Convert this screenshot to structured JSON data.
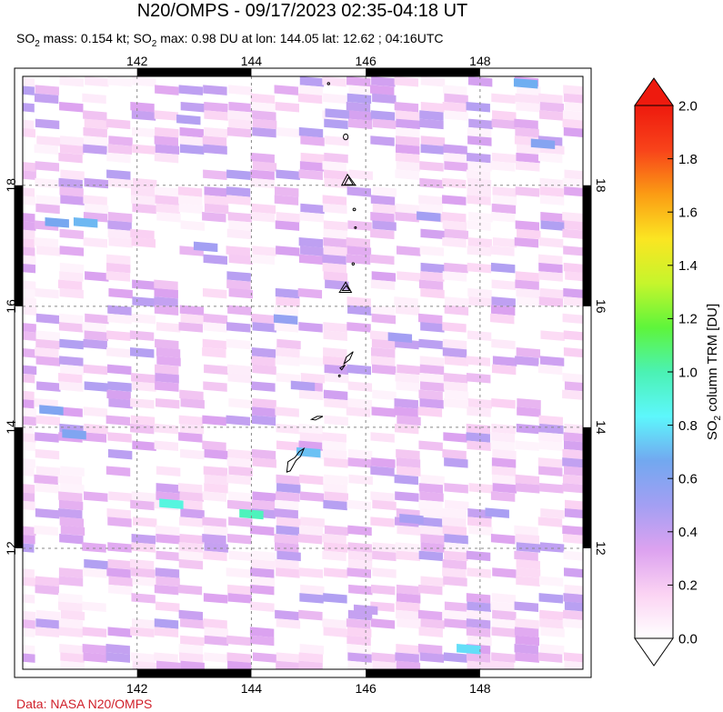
{
  "title": "N20/OMPS - 09/17/2023 02:35-04:18 UT",
  "subtitle": {
    "mass_label": "SO",
    "mass_sub": "2",
    "mass_text": " mass: 0.154 kt; ",
    "max_label": "SO",
    "max_sub": "2",
    "max_text": " max: 0.98 DU at lon: 144.05 lat: 12.62 ; 04:16UTC"
  },
  "credit": "Data: NASA N20/OMPS",
  "colors": {
    "frame": "#000000",
    "grid": "#888888",
    "coast": "#000000",
    "credit": "#d0202a"
  },
  "chart_data": {
    "type": "heatmap",
    "title": "N20/OMPS - 09/17/2023 02:35-04:18 UT",
    "xlim": [
      140.0,
      149.8
    ],
    "ylim": [
      10.0,
      19.8
    ],
    "x_ticks": [
      "142",
      "144",
      "146",
      "148"
    ],
    "x_tick_values": [
      142,
      144,
      146,
      148
    ],
    "y_ticks": [
      "12",
      "14",
      "16",
      "18"
    ],
    "y_tick_values": [
      12,
      14,
      16,
      18
    ],
    "grid": true,
    "colorbar": {
      "label": "SO2 column TRM [DU]",
      "label_main": "SO",
      "label_sub": "2",
      "label_rest": " column TRM [DU]",
      "min": 0.0,
      "max": 2.0,
      "ticks": [
        "0.0",
        "0.2",
        "0.4",
        "0.6",
        "0.8",
        "1.0",
        "1.2",
        "1.4",
        "1.6",
        "1.8",
        "2.0"
      ],
      "extend": "both",
      "colors": [
        "#ffffff",
        "#fbd3f3",
        "#dca2f0",
        "#a39ff3",
        "#72a8f0",
        "#5df7fc",
        "#4bf2b3",
        "#5ef53b",
        "#c6f52c",
        "#fbe522",
        "#fb9c14",
        "#f8431a",
        "#ee1a0e"
      ]
    },
    "max_value": 0.98,
    "max_location": {
      "lon": 144.05,
      "lat": 12.62
    },
    "sample_cells": [
      {
        "lon": 142.6,
        "lat": 12.75,
        "value": 0.9
      },
      {
        "lon": 144.0,
        "lat": 12.58,
        "value": 0.98
      },
      {
        "lon": 145.0,
        "lat": 13.6,
        "value": 0.72
      },
      {
        "lon": 147.8,
        "lat": 10.35,
        "value": 0.78
      },
      {
        "lon": 148.8,
        "lat": 19.7,
        "value": 0.68
      },
      {
        "lon": 149.1,
        "lat": 18.7,
        "value": 0.6
      },
      {
        "lon": 140.6,
        "lat": 17.4,
        "value": 0.65
      },
      {
        "lon": 141.1,
        "lat": 17.4,
        "value": 0.7
      },
      {
        "lon": 140.5,
        "lat": 14.3,
        "value": 0.62
      },
      {
        "lon": 140.9,
        "lat": 13.9,
        "value": 0.62
      },
      {
        "lon": 144.6,
        "lat": 15.8,
        "value": 0.55
      },
      {
        "lon": 146.6,
        "lat": 15.5,
        "value": 0.5
      },
      {
        "lon": 147.1,
        "lat": 17.5,
        "value": 0.5
      },
      {
        "lon": 146.8,
        "lat": 12.5,
        "value": 0.48
      },
      {
        "lon": 148.3,
        "lat": 12.6,
        "value": 0.48
      },
      {
        "lon": 142.9,
        "lat": 19.1,
        "value": 0.45
      },
      {
        "lon": 145.5,
        "lat": 19.2,
        "value": 0.45
      },
      {
        "lon": 143.2,
        "lat": 17.0,
        "value": 0.5
      },
      {
        "lon": 144.9,
        "lat": 14.7,
        "value": 0.45
      },
      {
        "lon": 146.0,
        "lat": 11.0,
        "value": 0.4
      }
    ]
  }
}
